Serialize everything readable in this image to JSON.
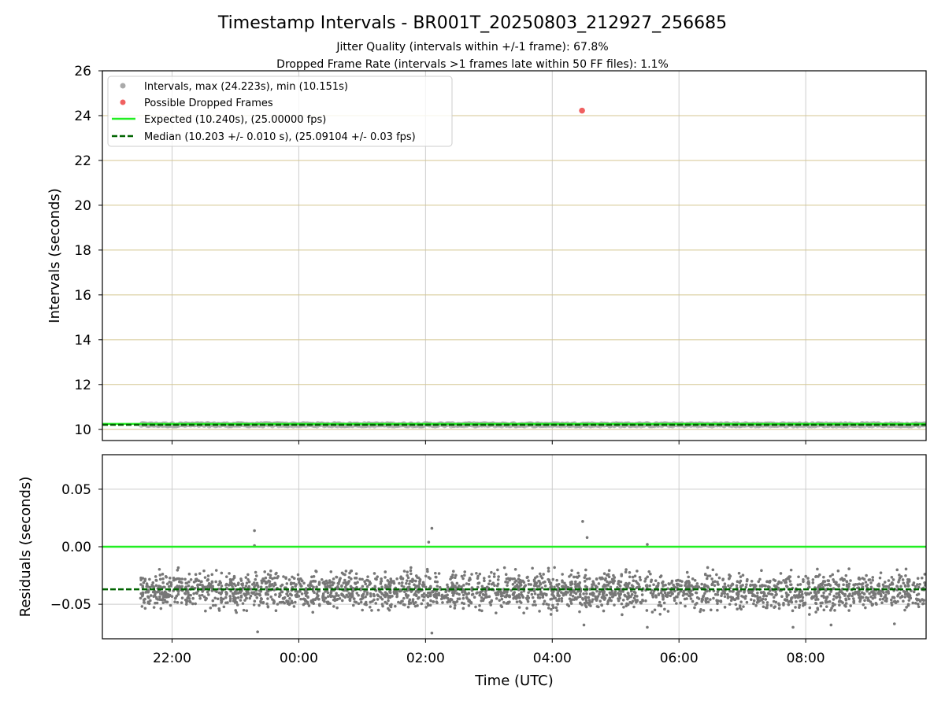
{
  "chart_data": [
    {
      "type": "scatter",
      "title": "Timestamp Intervals - BR001T_20250803_212927_256685",
      "subtitle_lines": [
        "Jitter Quality (intervals within +/-1 frame): 67.8%",
        "Dropped Frame Rate (intervals >1 frames late within 50 FF files): 1.1%"
      ],
      "xlabel": "",
      "ylabel": "Intervals (seconds)",
      "ylim": [
        9.5,
        26
      ],
      "yticks": [
        10,
        12,
        14,
        16,
        18,
        20,
        22,
        24,
        26
      ],
      "xlim_hours": [
        20.9,
        33.9
      ],
      "xticks": [
        {
          "h": 22,
          "label": "22:00"
        },
        {
          "h": 24,
          "label": "00:00"
        },
        {
          "h": 26,
          "label": "02:00"
        },
        {
          "h": 28,
          "label": "04:00"
        },
        {
          "h": 30,
          "label": "06:00"
        },
        {
          "h": 32,
          "label": "08:00"
        }
      ],
      "grid": true,
      "hgrid_color": "#d4c690",
      "vgrid_color": "#cccccc",
      "legend_position": "top-left",
      "legend": [
        {
          "label": "Intervals, max (24.223s), min (10.151s)",
          "kind": "dot",
          "color": "#aaaaaa"
        },
        {
          "label": "Possible Dropped Frames",
          "kind": "dot",
          "color": "#f06060"
        },
        {
          "label": "Expected (10.240s), (25.00000 fps)",
          "kind": "solid",
          "color": "#22ee22"
        },
        {
          "label": "Median (10.203 +/- 0.010 s), (25.09104 +/- 0.03 fps)",
          "kind": "dashed",
          "color": "#006400"
        }
      ],
      "series": [
        {
          "name": "Intervals",
          "color": "#aaaaaa",
          "x_range_hours": [
            21.5,
            33.9
          ],
          "y_band": [
            10.16,
            10.25
          ]
        },
        {
          "name": "Possible Dropped Frames",
          "color": "#f06060",
          "points": [
            {
              "x": 28.47,
              "y": 24.223
            }
          ]
        }
      ],
      "expected_line": 10.24,
      "median_line": 10.203
    },
    {
      "type": "scatter",
      "xlabel": "Time (UTC)",
      "ylabel": "Residuals (seconds)",
      "ylim": [
        -0.08,
        0.08
      ],
      "yticks": [
        {
          "v": 0.05,
          "label": "0.05"
        },
        {
          "v": 0.0,
          "label": "0.00"
        },
        {
          "v": -0.05,
          "label": "−0.05"
        }
      ],
      "xlim_hours": [
        20.9,
        33.9
      ],
      "grid": true,
      "series": [
        {
          "name": "Residuals",
          "color": "#777777",
          "x_range_hours": [
            21.5,
            33.9
          ],
          "y_band": [
            -0.062,
            -0.015
          ],
          "count": 2600,
          "outliers": [
            [
              23.3,
              0.014
            ],
            [
              23.3,
              0.001
            ],
            [
              26.1,
              0.016
            ],
            [
              26.05,
              0.004
            ],
            [
              28.48,
              0.022
            ],
            [
              28.55,
              0.008
            ],
            [
              29.5,
              0.002
            ],
            [
              26.1,
              -0.075
            ],
            [
              23.35,
              -0.074
            ],
            [
              28.5,
              -0.068
            ],
            [
              29.5,
              -0.07
            ],
            [
              31.8,
              -0.07
            ],
            [
              32.4,
              -0.068
            ],
            [
              33.4,
              -0.067
            ]
          ]
        }
      ],
      "expected_line": 0.0,
      "median_line": -0.037
    }
  ]
}
